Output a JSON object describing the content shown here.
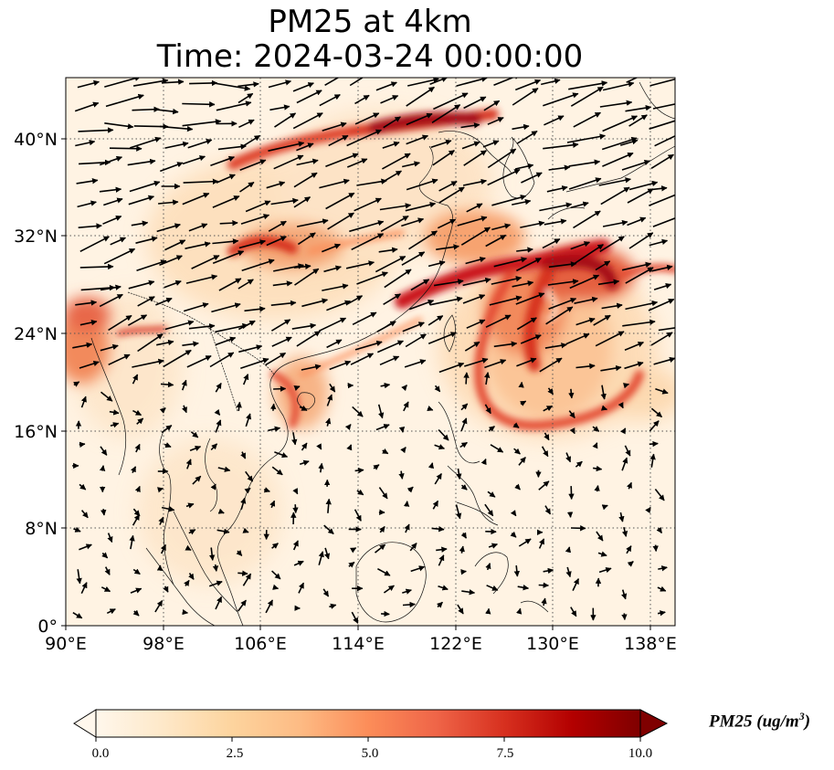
{
  "title": {
    "line1": "PM25 at 4km",
    "line2": "Time: 2024-03-24 00:00:00"
  },
  "map": {
    "projection": "PlateCarree",
    "extent": {
      "lon_min": 90,
      "lon_max": 140,
      "lat_min": 0,
      "lat_max": 45
    },
    "x_ticks": [
      "90°E",
      "98°E",
      "106°E",
      "114°E",
      "122°E",
      "130°E",
      "138°E"
    ],
    "y_ticks": [
      "0°",
      "8°N",
      "16°N",
      "24°N",
      "32°N",
      "40°N"
    ],
    "gridlines": "dotted",
    "coastlines": true,
    "wind_vectors": true,
    "high_pm25_regions": [
      "Northern China band near 40°N",
      "Sichuan Basin near 30°N",
      "East China Sea plume",
      "Swirl east of Taiwan (~130°E, 24°N)",
      "South Asia west edge"
    ]
  },
  "colorbar": {
    "label_main": "PM25 (ug/m",
    "label_sup": "3",
    "label_close": ")",
    "ticks": [
      "0.0",
      "2.5",
      "5.0",
      "7.5",
      "10.0"
    ],
    "min": 0,
    "max": 10,
    "extend": "both",
    "colormap": "OrRd",
    "colors": [
      "#fff7ec",
      "#fee8c8",
      "#fdd49e",
      "#fdbb84",
      "#fc8d59",
      "#ef6548",
      "#d7301f",
      "#b30000",
      "#7f0000"
    ]
  }
}
